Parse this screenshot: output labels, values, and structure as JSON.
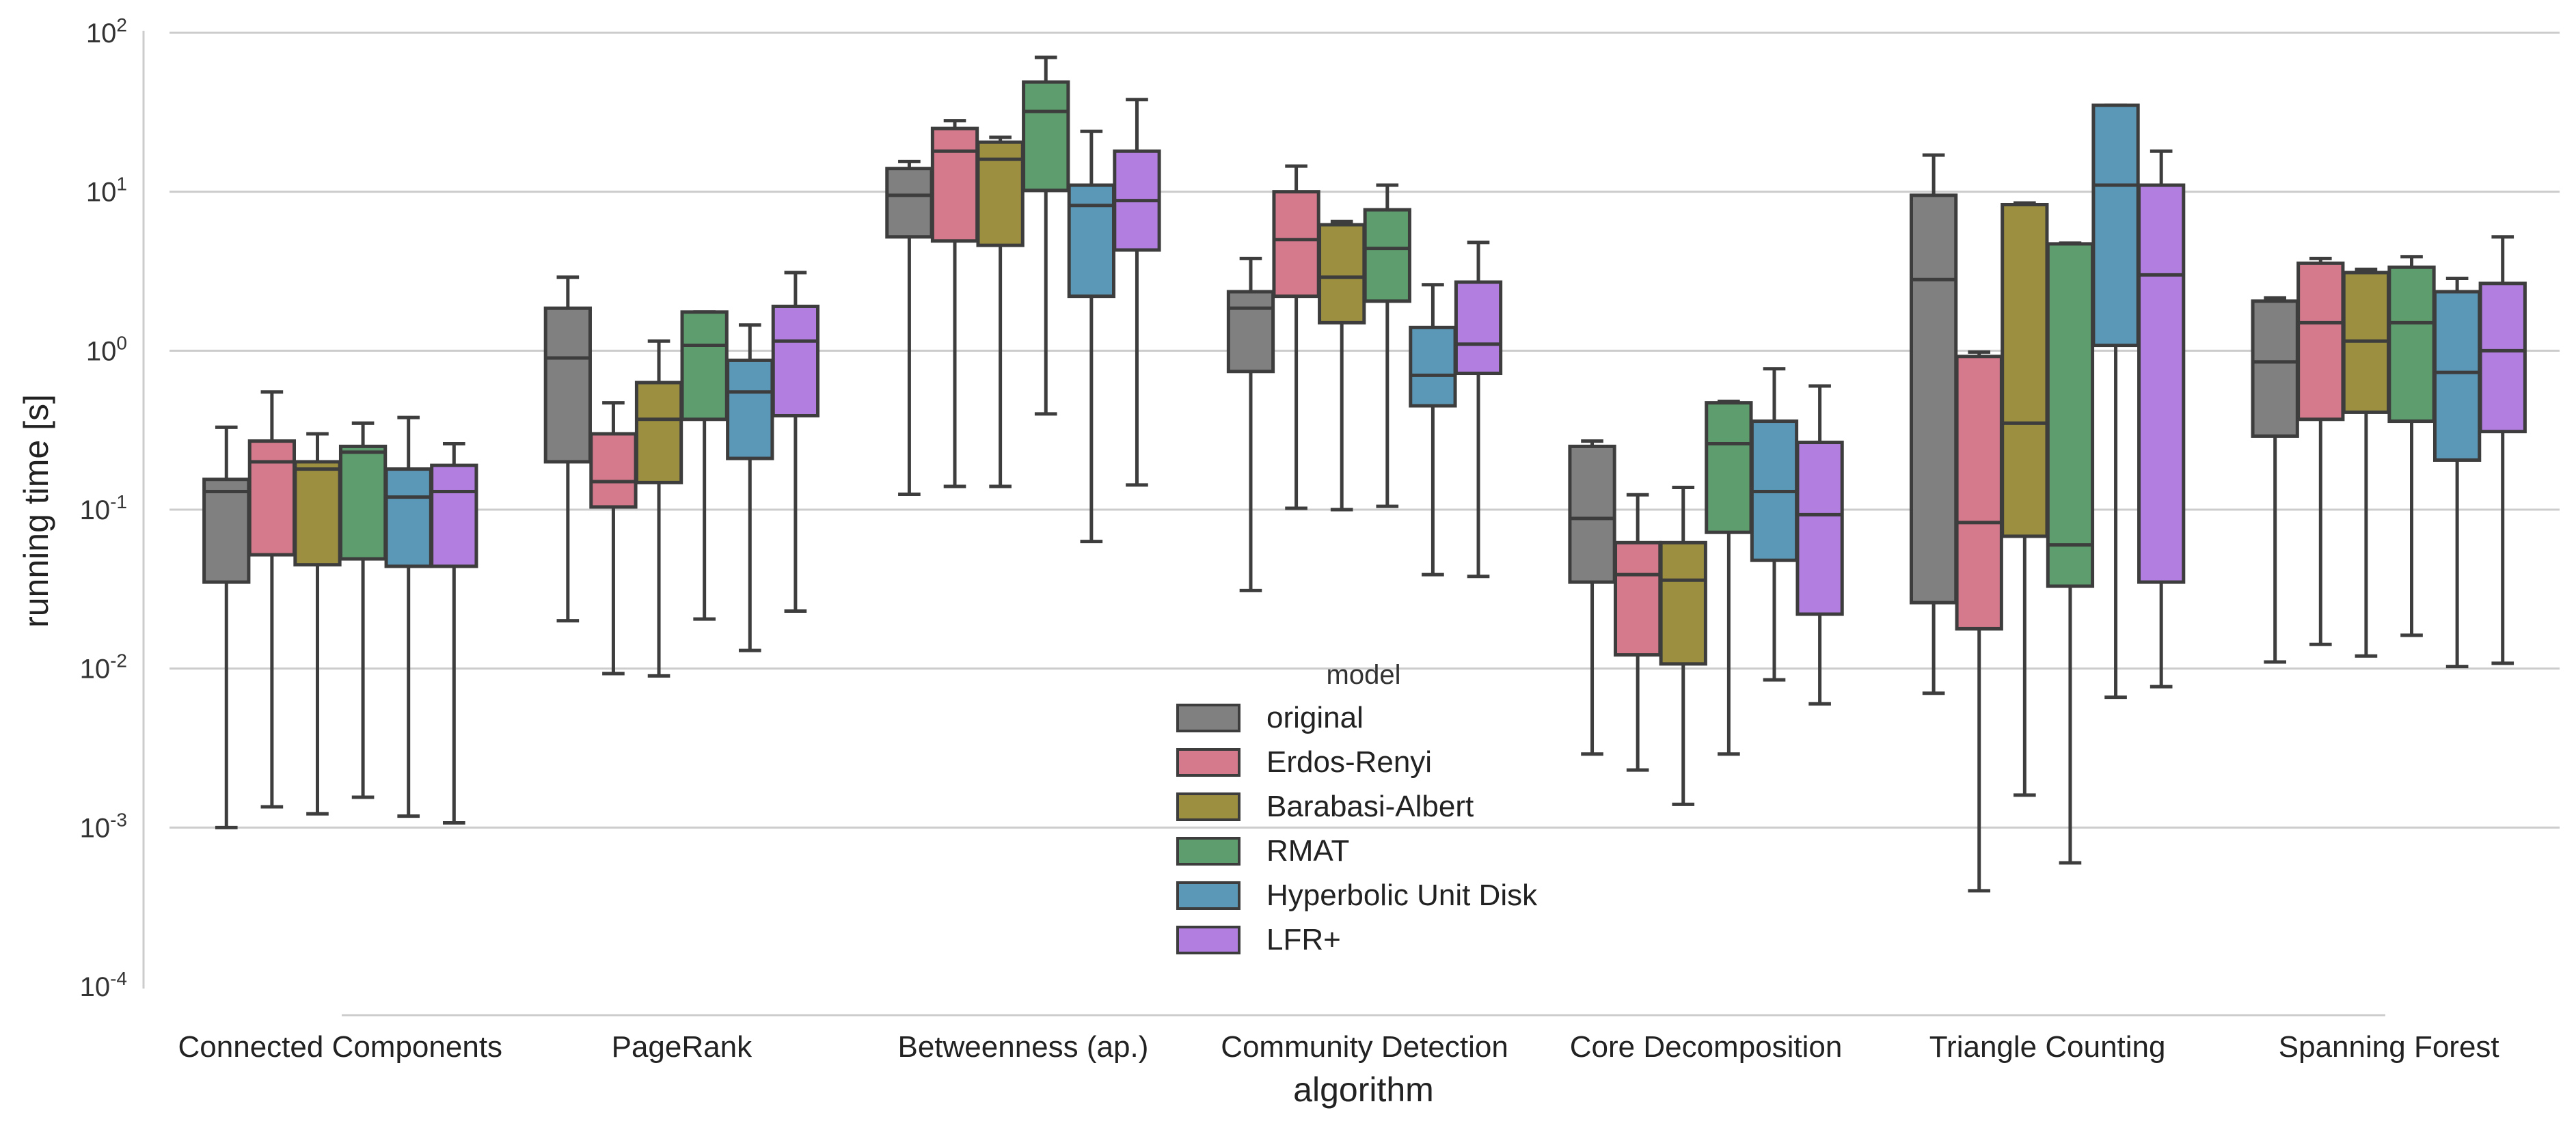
{
  "chart_data": {
    "type": "box",
    "ylabel": "running time [s]",
    "xlabel": "algorithm",
    "yscale": "log",
    "ylim": [
      0.0001,
      100
    ],
    "grid": true,
    "y_ticks": [
      {
        "value": 0.0001,
        "base": "10",
        "exp": "-4"
      },
      {
        "value": 0.001,
        "base": "10",
        "exp": "-3"
      },
      {
        "value": 0.01,
        "base": "10",
        "exp": "-2"
      },
      {
        "value": 0.1,
        "base": "10",
        "exp": "-1"
      },
      {
        "value": 1,
        "base": "10",
        "exp": "0"
      },
      {
        "value": 10,
        "base": "10",
        "exp": "1"
      },
      {
        "value": 100,
        "base": "10",
        "exp": "2"
      }
    ],
    "categories": [
      "Connected Components",
      "PageRank",
      "Betweenness (ap.)",
      "Community Detection",
      "Core Decomposition",
      "Triangle Counting",
      "Spanning Forest"
    ],
    "legend": {
      "title": "model",
      "placement": "lower-center"
    },
    "series": [
      {
        "name": "original",
        "color": "#808080",
        "boxes": [
          {
            "whislo": 0.001,
            "q1": 0.035,
            "med": 0.13,
            "q3": 0.155,
            "whishi": 0.33
          },
          {
            "whislo": 0.02,
            "q1": 0.2,
            "med": 0.9,
            "q3": 1.85,
            "whishi": 2.9
          },
          {
            "whislo": 0.125,
            "q1": 5.2,
            "med": 9.5,
            "q3": 14,
            "whishi": 15.5
          },
          {
            "whislo": 0.031,
            "q1": 0.74,
            "med": 1.85,
            "q3": 2.35,
            "whishi": 3.8
          },
          {
            "whislo": 0.0029,
            "q1": 0.035,
            "med": 0.088,
            "q3": 0.25,
            "whishi": 0.27
          },
          {
            "whislo": 0.007,
            "q1": 0.026,
            "med": 2.8,
            "q3": 9.5,
            "whishi": 17
          },
          {
            "whislo": 0.011,
            "q1": 0.29,
            "med": 0.85,
            "q3": 2.05,
            "whishi": 2.15
          }
        ]
      },
      {
        "name": "Erdos-Renyi",
        "color": "#d47a8c",
        "boxes": [
          {
            "whislo": 0.00135,
            "q1": 0.052,
            "med": 0.2,
            "q3": 0.27,
            "whishi": 0.55
          },
          {
            "whislo": 0.0093,
            "q1": 0.104,
            "med": 0.15,
            "q3": 0.3,
            "whishi": 0.47
          },
          {
            "whislo": 0.14,
            "q1": 4.9,
            "med": 18,
            "q3": 25,
            "whishi": 28
          },
          {
            "whislo": 0.102,
            "q1": 2.2,
            "med": 5,
            "q3": 10,
            "whishi": 14.5
          },
          {
            "whislo": 0.0023,
            "q1": 0.0122,
            "med": 0.039,
            "q3": 0.062,
            "whishi": 0.124
          },
          {
            "whislo": 0.0004,
            "q1": 0.0178,
            "med": 0.083,
            "q3": 0.92,
            "whishi": 0.98
          },
          {
            "whislo": 0.0142,
            "q1": 0.37,
            "med": 1.5,
            "q3": 3.55,
            "whishi": 3.8
          }
        ]
      },
      {
        "name": "Barabasi-Albert",
        "color": "#9c9040",
        "boxes": [
          {
            "whislo": 0.00122,
            "q1": 0.045,
            "med": 0.18,
            "q3": 0.2,
            "whishi": 0.3
          },
          {
            "whislo": 0.009,
            "q1": 0.148,
            "med": 0.37,
            "q3": 0.63,
            "whishi": 1.15
          },
          {
            "whislo": 0.14,
            "q1": 4.6,
            "med": 16,
            "q3": 20.5,
            "whishi": 22
          },
          {
            "whislo": 0.1,
            "q1": 1.5,
            "med": 2.9,
            "q3": 6.2,
            "whishi": 6.5
          },
          {
            "whislo": 0.0014,
            "q1": 0.0107,
            "med": 0.036,
            "q3": 0.062,
            "whishi": 0.138
          },
          {
            "whislo": 0.0016,
            "q1": 0.068,
            "med": 0.35,
            "q3": 8.3,
            "whishi": 8.5
          },
          {
            "whislo": 0.012,
            "q1": 0.41,
            "med": 1.15,
            "q3": 3.1,
            "whishi": 3.25
          }
        ]
      },
      {
        "name": "RMAT",
        "color": "#5e9e6e",
        "boxes": [
          {
            "whislo": 0.00155,
            "q1": 0.049,
            "med": 0.23,
            "q3": 0.25,
            "whishi": 0.35
          },
          {
            "whislo": 0.0205,
            "q1": 0.37,
            "med": 1.08,
            "q3": 1.75,
            "whishi": 1.75
          },
          {
            "whislo": 0.4,
            "q1": 10.2,
            "med": 32,
            "q3": 49,
            "whishi": 70
          },
          {
            "whislo": 0.105,
            "q1": 2.05,
            "med": 4.4,
            "q3": 7.7,
            "whishi": 11
          },
          {
            "whislo": 0.0029,
            "q1": 0.072,
            "med": 0.26,
            "q3": 0.47,
            "whishi": 0.48
          },
          {
            "whislo": 0.0006,
            "q1": 0.033,
            "med": 0.06,
            "q3": 4.7,
            "whishi": 4.75
          },
          {
            "whislo": 0.0162,
            "q1": 0.36,
            "med": 1.5,
            "q3": 3.35,
            "whishi": 3.9
          }
        ]
      },
      {
        "name": "Hyperbolic Unit Disk",
        "color": "#5b98b8",
        "boxes": [
          {
            "whislo": 0.00118,
            "q1": 0.044,
            "med": 0.12,
            "q3": 0.18,
            "whishi": 0.38
          },
          {
            "whislo": 0.013,
            "q1": 0.21,
            "med": 0.55,
            "q3": 0.87,
            "whishi": 1.45
          },
          {
            "whislo": 0.063,
            "q1": 2.2,
            "med": 8.2,
            "q3": 11,
            "whishi": 24
          },
          {
            "whislo": 0.039,
            "q1": 0.45,
            "med": 0.7,
            "q3": 1.4,
            "whishi": 2.6
          },
          {
            "whislo": 0.0085,
            "q1": 0.048,
            "med": 0.13,
            "q3": 0.36,
            "whishi": 0.77
          },
          {
            "whislo": 0.0066,
            "q1": 1.08,
            "med": 11,
            "q3": 35,
            "whishi": 35
          },
          {
            "whislo": 0.0103,
            "q1": 0.205,
            "med": 0.73,
            "q3": 2.35,
            "whishi": 2.85
          }
        ]
      },
      {
        "name": "LFR+",
        "color": "#b27fe0",
        "boxes": [
          {
            "whislo": 0.00107,
            "q1": 0.044,
            "med": 0.13,
            "q3": 0.19,
            "whishi": 0.26
          },
          {
            "whislo": 0.023,
            "q1": 0.39,
            "med": 1.15,
            "q3": 1.9,
            "whishi": 3.1
          },
          {
            "whislo": 0.143,
            "q1": 4.3,
            "med": 8.8,
            "q3": 18,
            "whishi": 38
          },
          {
            "whislo": 0.038,
            "q1": 0.72,
            "med": 1.1,
            "q3": 2.7,
            "whishi": 4.8
          },
          {
            "whislo": 0.006,
            "q1": 0.022,
            "med": 0.093,
            "q3": 0.265,
            "whishi": 0.6
          },
          {
            "whislo": 0.0077,
            "q1": 0.035,
            "med": 3,
            "q3": 11,
            "whishi": 18
          },
          {
            "whislo": 0.0108,
            "q1": 0.31,
            "med": 1,
            "q3": 2.65,
            "whishi": 5.2
          }
        ]
      }
    ]
  }
}
